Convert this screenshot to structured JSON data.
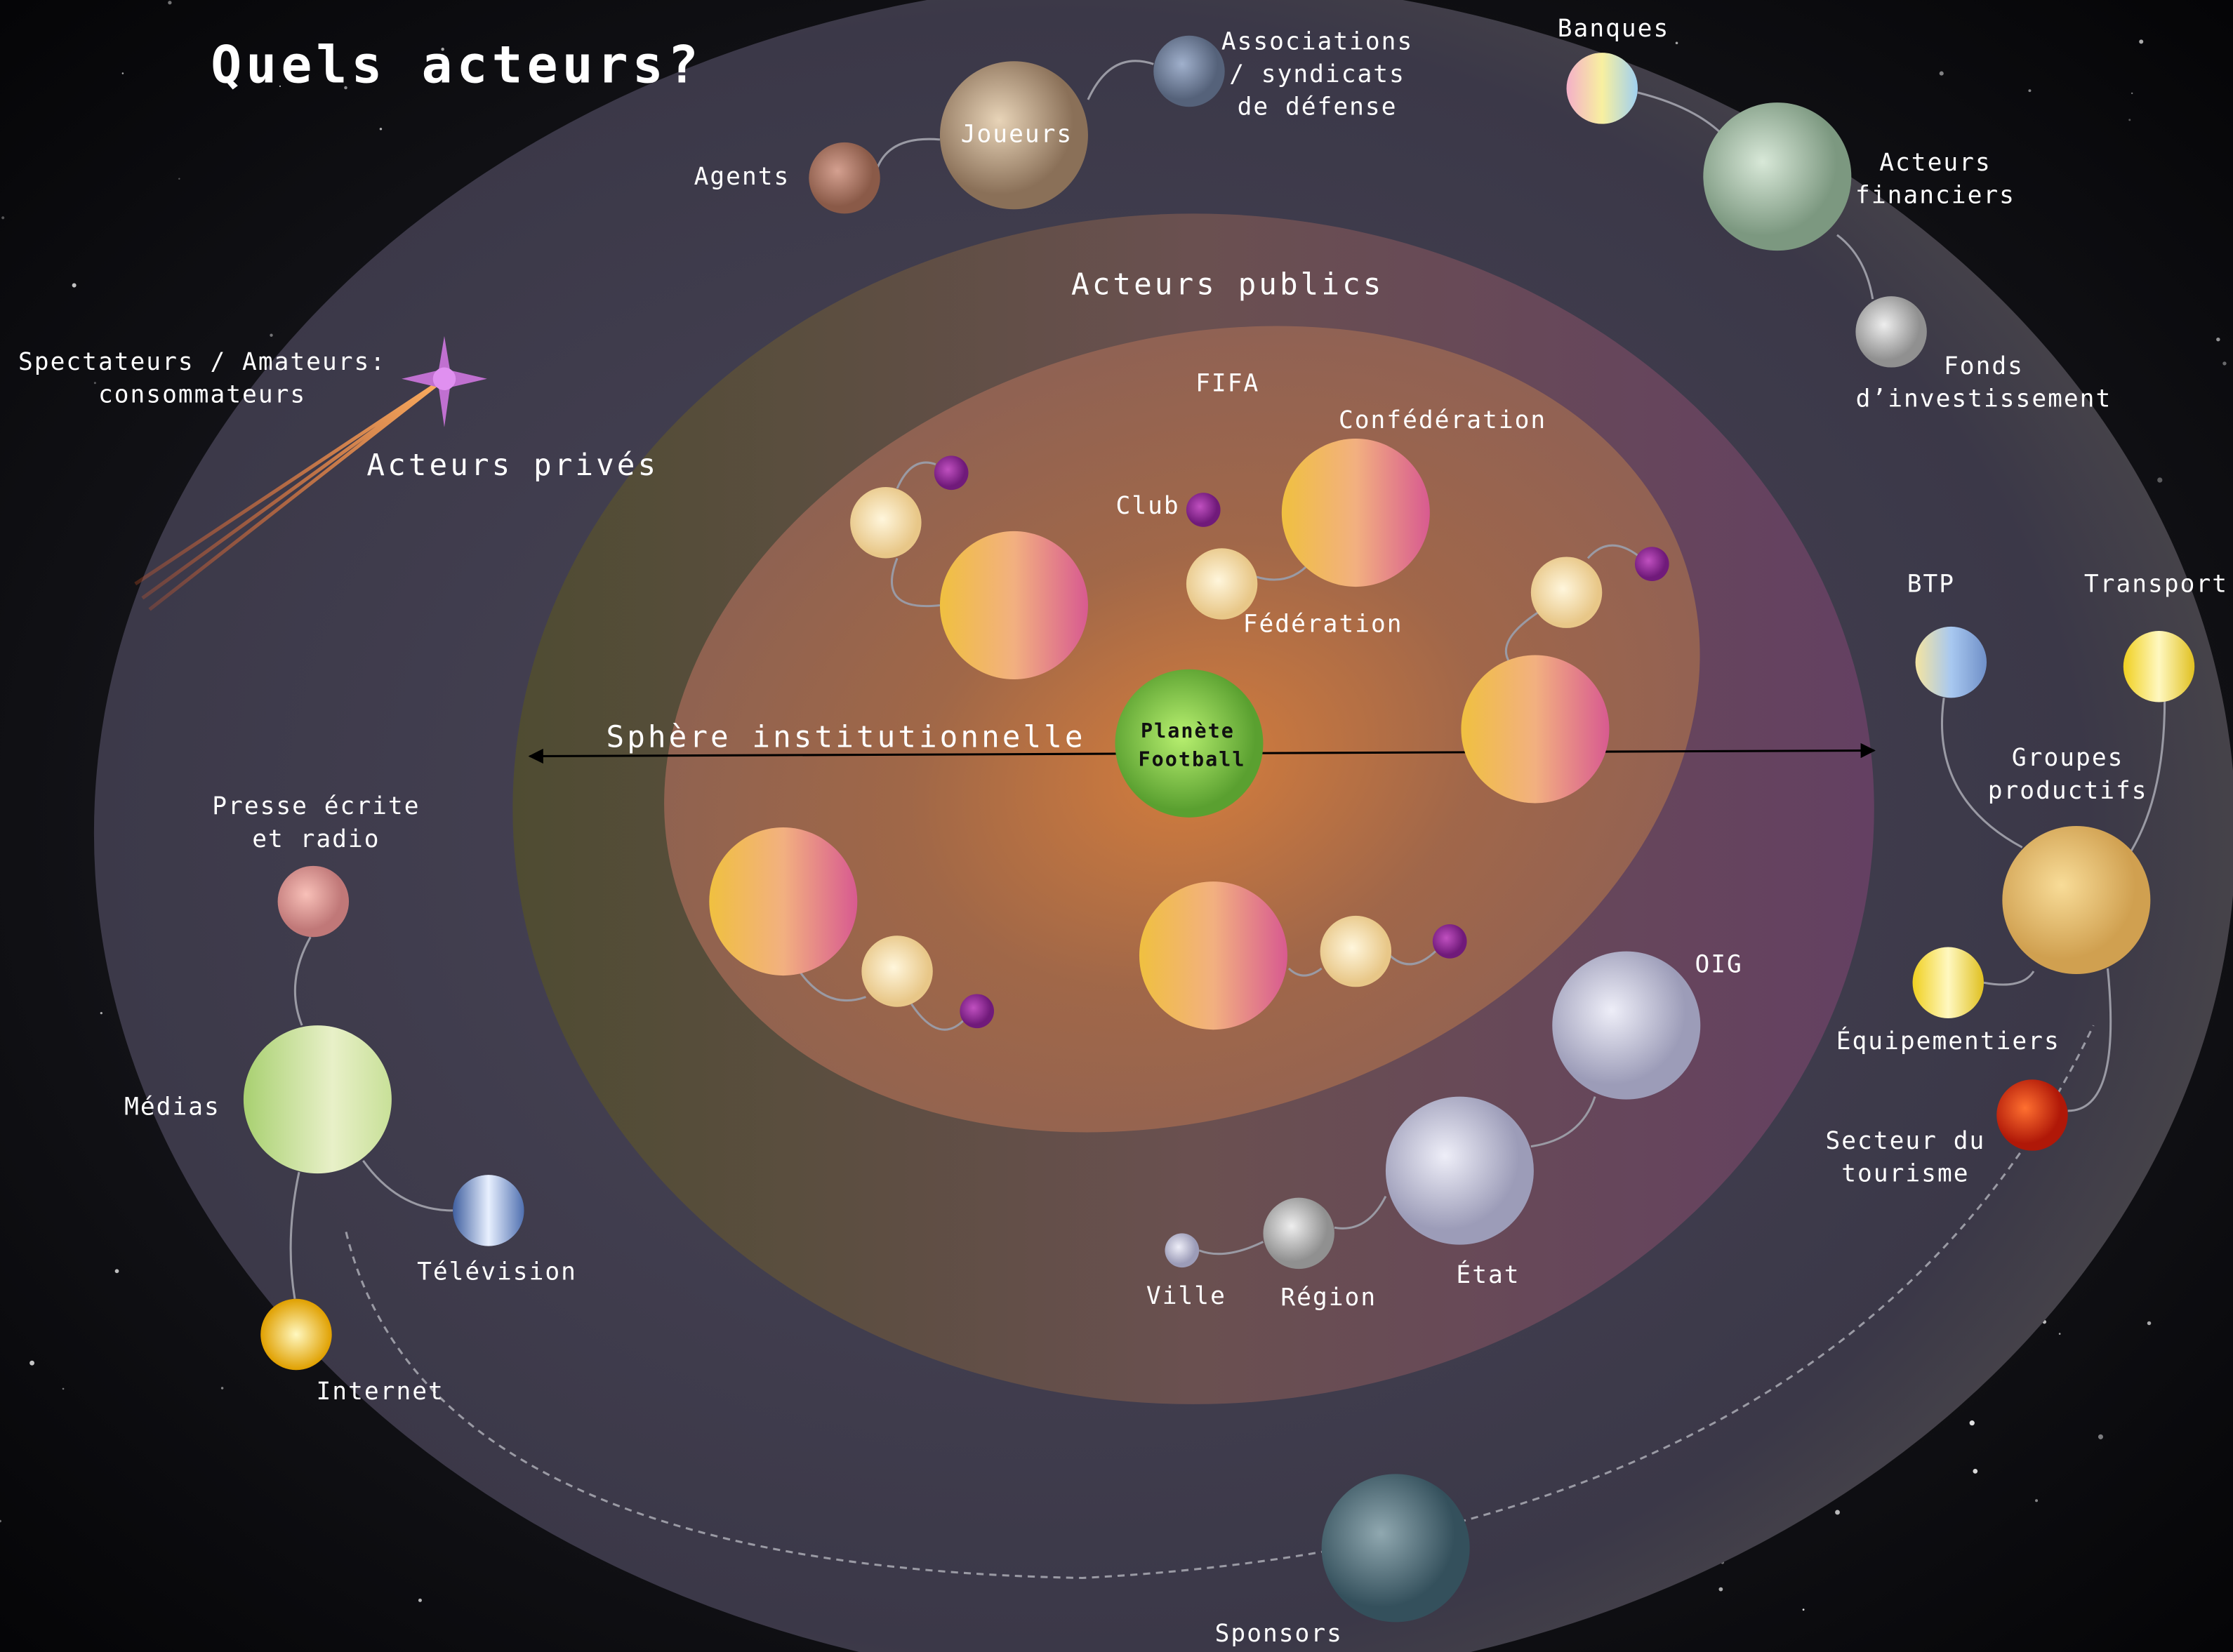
{
  "title": "Quels acteurs?",
  "zones": {
    "private": "Acteurs privés",
    "public": "Acteurs publics",
    "institutional": "Sphère institutionnelle",
    "fifa": "FIFA"
  },
  "center": [
    "Planète",
    "Football"
  ],
  "labels": [
    [
      "Associations",
      "/ syndicats",
      "de défense"
    ],
    [
      "Banques"
    ],
    [
      "Joueurs"
    ],
    [
      "Agents"
    ],
    [
      "Acteurs",
      "financiers"
    ],
    [
      "Fonds",
      "d’investissement"
    ],
    [
      "Spectateurs / Amateurs:",
      "consommateurs"
    ],
    [
      "Club"
    ],
    [
      "Confédération"
    ],
    [
      "Fédération"
    ],
    [
      "BTP"
    ],
    [
      "Transport"
    ],
    [
      "Groupes",
      "productifs"
    ],
    [
      "Presse écrite",
      "et radio"
    ],
    [
      "OIG"
    ],
    [
      "Équipementiers"
    ],
    [
      "Médias"
    ],
    [
      "Secteur du",
      "tourisme"
    ],
    [
      "Télévision"
    ],
    [
      "Ville"
    ],
    [
      "Région"
    ],
    [
      "État"
    ],
    [
      "Internet"
    ],
    [
      "Sponsors"
    ]
  ]
}
